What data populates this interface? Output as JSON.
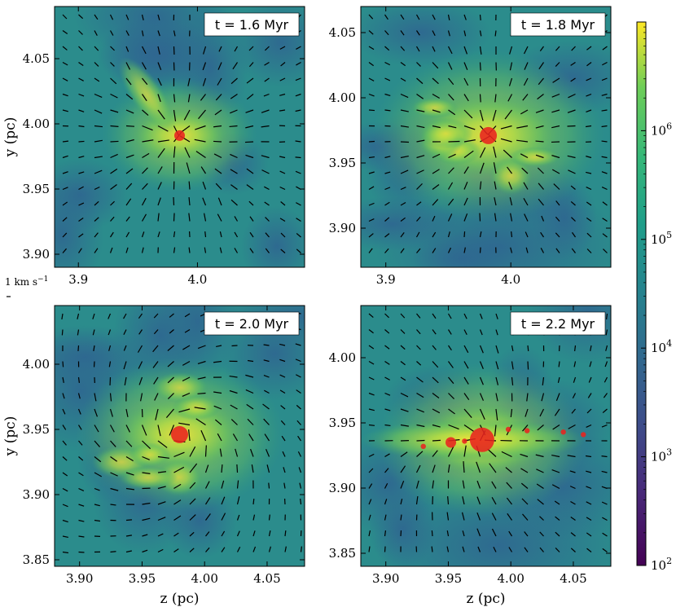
{
  "chart_data": [
    {
      "type": "heatmap",
      "panel": "top-left",
      "annotation": "t = 1.6 Myr",
      "ylabel": "y (pc)",
      "xlabel": "",
      "xlim": [
        3.88,
        4.09
      ],
      "ylim": [
        3.89,
        4.09
      ],
      "xticks": [
        "3.9",
        "4.0"
      ],
      "yticks": [
        "3.90",
        "3.95",
        "4.00",
        "4.05"
      ],
      "sinks": [
        {
          "z": 3.985,
          "y": 3.991,
          "size": "small"
        }
      ],
      "flow": "converging"
    },
    {
      "type": "heatmap",
      "panel": "top-right",
      "annotation": "t = 1.8 Myr",
      "ylabel": "",
      "xlabel": "",
      "xlim": [
        3.88,
        4.08
      ],
      "ylim": [
        3.87,
        4.07
      ],
      "xticks": [
        "3.9",
        "4.0"
      ],
      "yticks": [
        "3.90",
        "3.95",
        "4.00",
        "4.05"
      ],
      "sinks": [
        {
          "z": 3.982,
          "y": 3.971,
          "size": "medium"
        }
      ],
      "flow": "converging"
    },
    {
      "type": "heatmap",
      "panel": "bottom-left",
      "annotation": "t = 2.0 Myr",
      "ylabel": "y (pc)",
      "xlabel": "z (pc)",
      "xlim": [
        3.88,
        4.08
      ],
      "ylim": [
        3.845,
        4.045
      ],
      "xticks": [
        "3.90",
        "3.95",
        "4.00",
        "4.05"
      ],
      "yticks": [
        "3.85",
        "3.90",
        "3.95",
        "4.00"
      ],
      "sinks": [
        {
          "z": 3.98,
          "y": 3.946,
          "size": "medium"
        }
      ],
      "flow": "rotating"
    },
    {
      "type": "heatmap",
      "panel": "bottom-right",
      "annotation": "t = 2.2 Myr",
      "ylabel": "",
      "xlabel": "z (pc)",
      "xlim": [
        3.88,
        4.08
      ],
      "ylim": [
        3.84,
        4.04
      ],
      "xticks": [
        "3.90",
        "3.95",
        "4.00",
        "4.05"
      ],
      "yticks": [
        "3.85",
        "3.90",
        "3.95",
        "4.00"
      ],
      "sinks": [
        {
          "z": 3.977,
          "y": 3.937,
          "size": "large"
        },
        {
          "z": 3.952,
          "y": 3.935,
          "size": "small"
        },
        {
          "z": 3.963,
          "y": 3.936,
          "size": "tiny"
        },
        {
          "z": 3.998,
          "y": 3.945,
          "size": "tiny"
        },
        {
          "z": 4.013,
          "y": 3.944,
          "size": "tiny"
        },
        {
          "z": 4.042,
          "y": 3.943,
          "size": "tiny"
        },
        {
          "z": 4.058,
          "y": 3.941,
          "size": "tiny"
        },
        {
          "z": 3.93,
          "y": 3.932,
          "size": "tiny"
        }
      ],
      "flow": "filament"
    }
  ],
  "colorbar": {
    "scale": "log",
    "colormap": "viridis",
    "range": [
      100,
      10000000
    ],
    "ticks": [
      {
        "label": "10",
        "exp": "2",
        "value": 100
      },
      {
        "label": "10",
        "exp": "3",
        "value": 1000
      },
      {
        "label": "10",
        "exp": "4",
        "value": 10000
      },
      {
        "label": "10",
        "exp": "5",
        "value": 100000
      },
      {
        "label": "10",
        "exp": "6",
        "value": 1000000
      }
    ]
  },
  "velocity_scale": {
    "label": "1 km s",
    "exp": "−1"
  },
  "colors": {
    "sink": "#e8231f",
    "arrow": "#000000"
  }
}
